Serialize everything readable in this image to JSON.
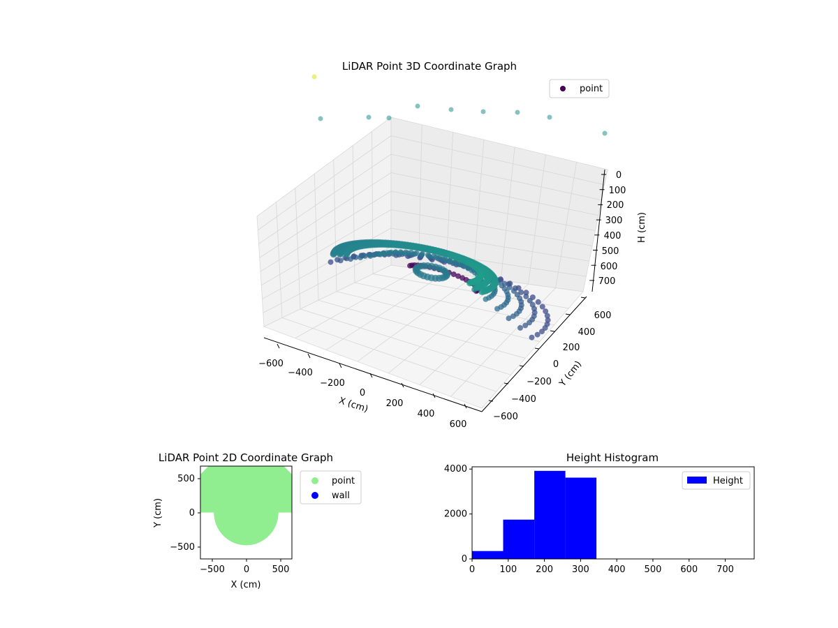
{
  "figure": {
    "background": "#ffffff"
  },
  "chart_data": [
    {
      "type": "scatter",
      "projection": "3d",
      "title": "LiDAR Point 3D Coordinate Graph",
      "xlabel": "X (cm)",
      "ylabel": "Y (cm)",
      "zlabel": "H (cm)",
      "xticks": [
        "−600",
        "−400",
        "−200",
        "0",
        "200",
        "400",
        "600"
      ],
      "yticks": [
        "−600",
        "−400",
        "−200",
        "0",
        "200",
        "400",
        "600"
      ],
      "zticks": [
        "0",
        "100",
        "200",
        "300",
        "400",
        "500",
        "600",
        "700"
      ],
      "xlim": [
        -650,
        650
      ],
      "ylim": [
        -650,
        650
      ],
      "zlim": [
        750,
        0
      ],
      "z_inverted": true,
      "colormap": "viridis",
      "grid": true,
      "legend": {
        "entries": [
          "point"
        ],
        "placement": "upper right",
        "marker_color": "#440154"
      },
      "outer_points": [
        {
          "x": -620,
          "y": 560,
          "h": 740
        },
        {
          "x": -560,
          "y": 520,
          "h": 600
        },
        {
          "x": -500,
          "y": 500,
          "h": 600
        },
        {
          "x": -440,
          "y": 480,
          "h": 600
        },
        {
          "x": -360,
          "y": 470,
          "h": 600
        },
        {
          "x": -260,
          "y": 460,
          "h": 600
        },
        {
          "x": -160,
          "y": 450,
          "h": 600
        },
        {
          "x": -50,
          "y": 440,
          "h": 600
        },
        {
          "x": 80,
          "y": 420,
          "h": 600
        },
        {
          "x": 240,
          "y": 400,
          "h": 600
        }
      ],
      "ring_series": {
        "shape": "semicircle",
        "radius_range": [
          280,
          600
        ],
        "height_range": [
          200,
          350
        ]
      },
      "inner_curve": {
        "shape": "arc",
        "radius": 200,
        "height": 250
      }
    },
    {
      "type": "scatter",
      "title": "LiDAR Point 2D Coordinate Graph",
      "xlabel": "X (cm)",
      "ylabel": "Y (cm)",
      "xticks": [
        "−500",
        "0",
        "500"
      ],
      "yticks": [
        "−500",
        "0",
        "500"
      ],
      "xlim": [
        -680,
        680
      ],
      "ylim": [
        -680,
        680
      ],
      "series": [
        {
          "name": "point",
          "color": "#90ee90"
        },
        {
          "name": "wall",
          "color": "#0000ff"
        }
      ],
      "region": {
        "upper_rect": [
          -680,
          680,
          0,
          680
        ],
        "upper_corners_clipped": true,
        "lower_circle_radius": 480
      }
    },
    {
      "type": "bar",
      "title": "Height Histogram",
      "xlim": [
        0,
        780
      ],
      "ylim": [
        0,
        4100
      ],
      "xticks": [
        "0",
        "100",
        "200",
        "300",
        "400",
        "500",
        "600",
        "700"
      ],
      "yticks": [
        "0",
        "2000",
        "4000"
      ],
      "color": "#0000ff",
      "legend": {
        "entries": [
          "Height"
        ],
        "placement": "upper right"
      },
      "bins": [
        {
          "x0": 0,
          "x1": 86,
          "count": 350
        },
        {
          "x0": 86,
          "x1": 172,
          "count": 1750
        },
        {
          "x0": 172,
          "x1": 258,
          "count": 3920
        },
        {
          "x0": 258,
          "x1": 344,
          "count": 3620
        }
      ]
    }
  ]
}
